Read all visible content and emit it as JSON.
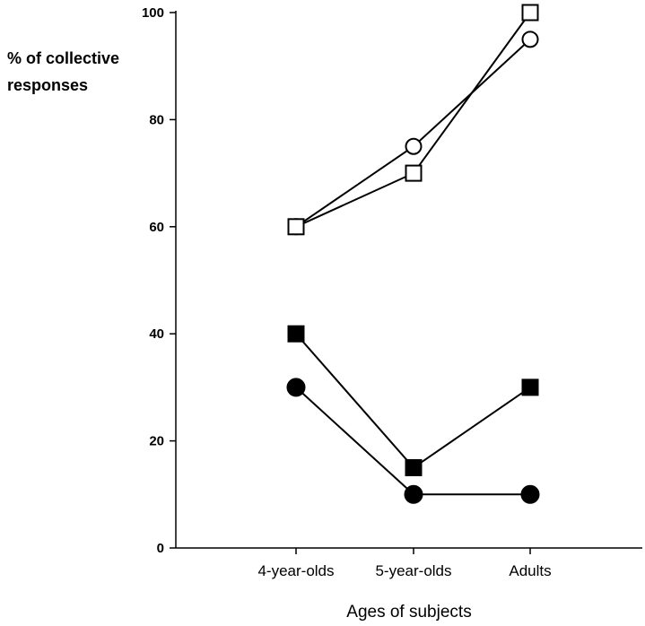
{
  "chart_data": {
    "type": "line",
    "title": "",
    "ylabel_lines": [
      "% of collective",
      "responses"
    ],
    "xlabel": "Ages of subjects",
    "categories": [
      "4-year-olds",
      "5-year-olds",
      "Adults"
    ],
    "ylim": [
      0,
      100
    ],
    "yticks": [
      "0",
      "20",
      "40",
      "60",
      "80",
      "100"
    ],
    "grid": false,
    "legend": "none",
    "series": [
      {
        "marker": "open-circle",
        "values": [
          60,
          75,
          95
        ]
      },
      {
        "marker": "open-square",
        "values": [
          60,
          70,
          100
        ]
      },
      {
        "marker": "filled-square",
        "values": [
          40,
          15,
          30
        ]
      },
      {
        "marker": "filled-circle",
        "values": [
          30,
          10,
          10
        ]
      }
    ]
  }
}
